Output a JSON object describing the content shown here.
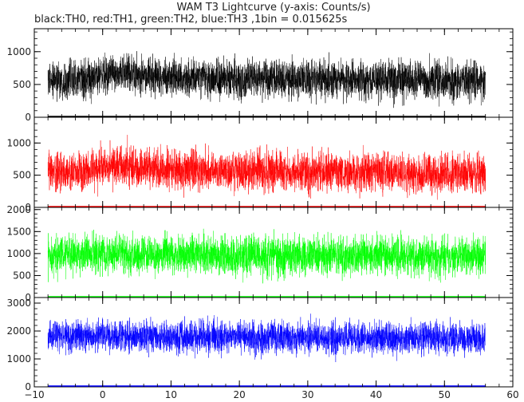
{
  "chart_data": {
    "type": "line",
    "title": "WAM T3 Lightcurve (y-axis: Counts/s)",
    "subtitle": "black:TH0, red:TH1, green:TH2, blue:TH3 ,1bin = 0.015625s",
    "x_range": [
      -10,
      60
    ],
    "x_ticks": [
      "−10",
      "0",
      "10",
      "20",
      "30",
      "40",
      "50",
      "60"
    ],
    "data_range": [
      -8,
      56
    ],
    "bin_seconds": 0.015625,
    "grid": false,
    "panels": [
      {
        "series": "TH0",
        "color": "#000000",
        "ylim": [
          0,
          1350
        ],
        "yticks": [
          0,
          500,
          1000
        ],
        "baseline": [
          [
            -8,
            560
          ],
          [
            -2,
            570
          ],
          [
            0,
            640
          ],
          [
            2,
            680
          ],
          [
            5,
            640
          ],
          [
            10,
            600
          ],
          [
            20,
            590
          ],
          [
            30,
            580
          ],
          [
            40,
            570
          ],
          [
            50,
            560
          ],
          [
            56,
            560
          ]
        ],
        "spread": 220
      },
      {
        "series": "TH1",
        "color": "#ff0000",
        "ylim": [
          0,
          1400
        ],
        "yticks": [
          0,
          500,
          1000
        ],
        "baseline": [
          [
            -8,
            540
          ],
          [
            -2,
            560
          ],
          [
            0,
            640
          ],
          [
            2,
            680
          ],
          [
            5,
            620
          ],
          [
            10,
            580
          ],
          [
            20,
            560
          ],
          [
            30,
            550
          ],
          [
            40,
            540
          ],
          [
            50,
            520
          ],
          [
            56,
            520
          ]
        ],
        "spread": 230
      },
      {
        "series": "TH2",
        "color": "#00ff00",
        "ylim": [
          0,
          2050
        ],
        "yticks": [
          0,
          500,
          1000,
          1500,
          2000
        ],
        "baseline": [
          [
            -8,
            950
          ],
          [
            0,
            990
          ],
          [
            10,
            970
          ],
          [
            20,
            960
          ],
          [
            30,
            950
          ],
          [
            40,
            940
          ],
          [
            50,
            930
          ],
          [
            56,
            930
          ]
        ],
        "spread": 330
      },
      {
        "series": "TH3",
        "color": "#0000ff",
        "ylim": [
          0,
          3200
        ],
        "yticks": [
          0,
          1000,
          2000,
          3000
        ],
        "baseline": [
          [
            -8,
            1800
          ],
          [
            0,
            1820
          ],
          [
            10,
            1780
          ],
          [
            20,
            1770
          ],
          [
            30,
            1760
          ],
          [
            40,
            1750
          ],
          [
            50,
            1740
          ],
          [
            56,
            1740
          ]
        ],
        "spread": 420
      }
    ]
  }
}
